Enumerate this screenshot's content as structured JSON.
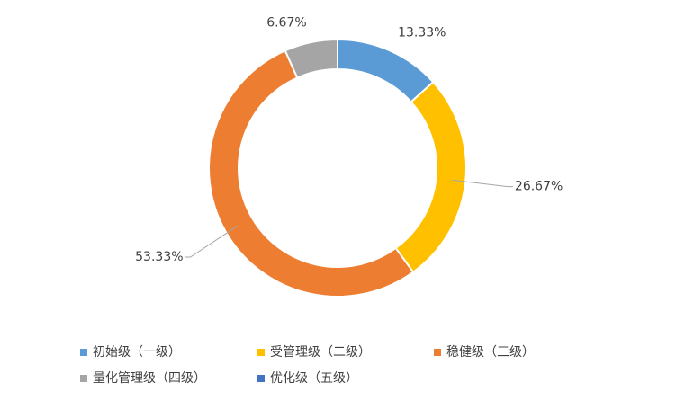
{
  "chart_data": {
    "type": "donut",
    "categories": [
      "初始级（一级）",
      "受管理级（二级）",
      "稳健级（三级）",
      "量化管理级（四级）",
      "优化级（五级）"
    ],
    "values": [
      13.33,
      26.67,
      53.33,
      6.67,
      0
    ],
    "value_labels": [
      "13.33%",
      "26.67%",
      "53.33%",
      "6.67%",
      null
    ],
    "colors": [
      "#5b9bd5",
      "#ffc000",
      "#ed7d31",
      "#a5a5a5",
      "#4472c4"
    ],
    "legend": "bottom"
  }
}
